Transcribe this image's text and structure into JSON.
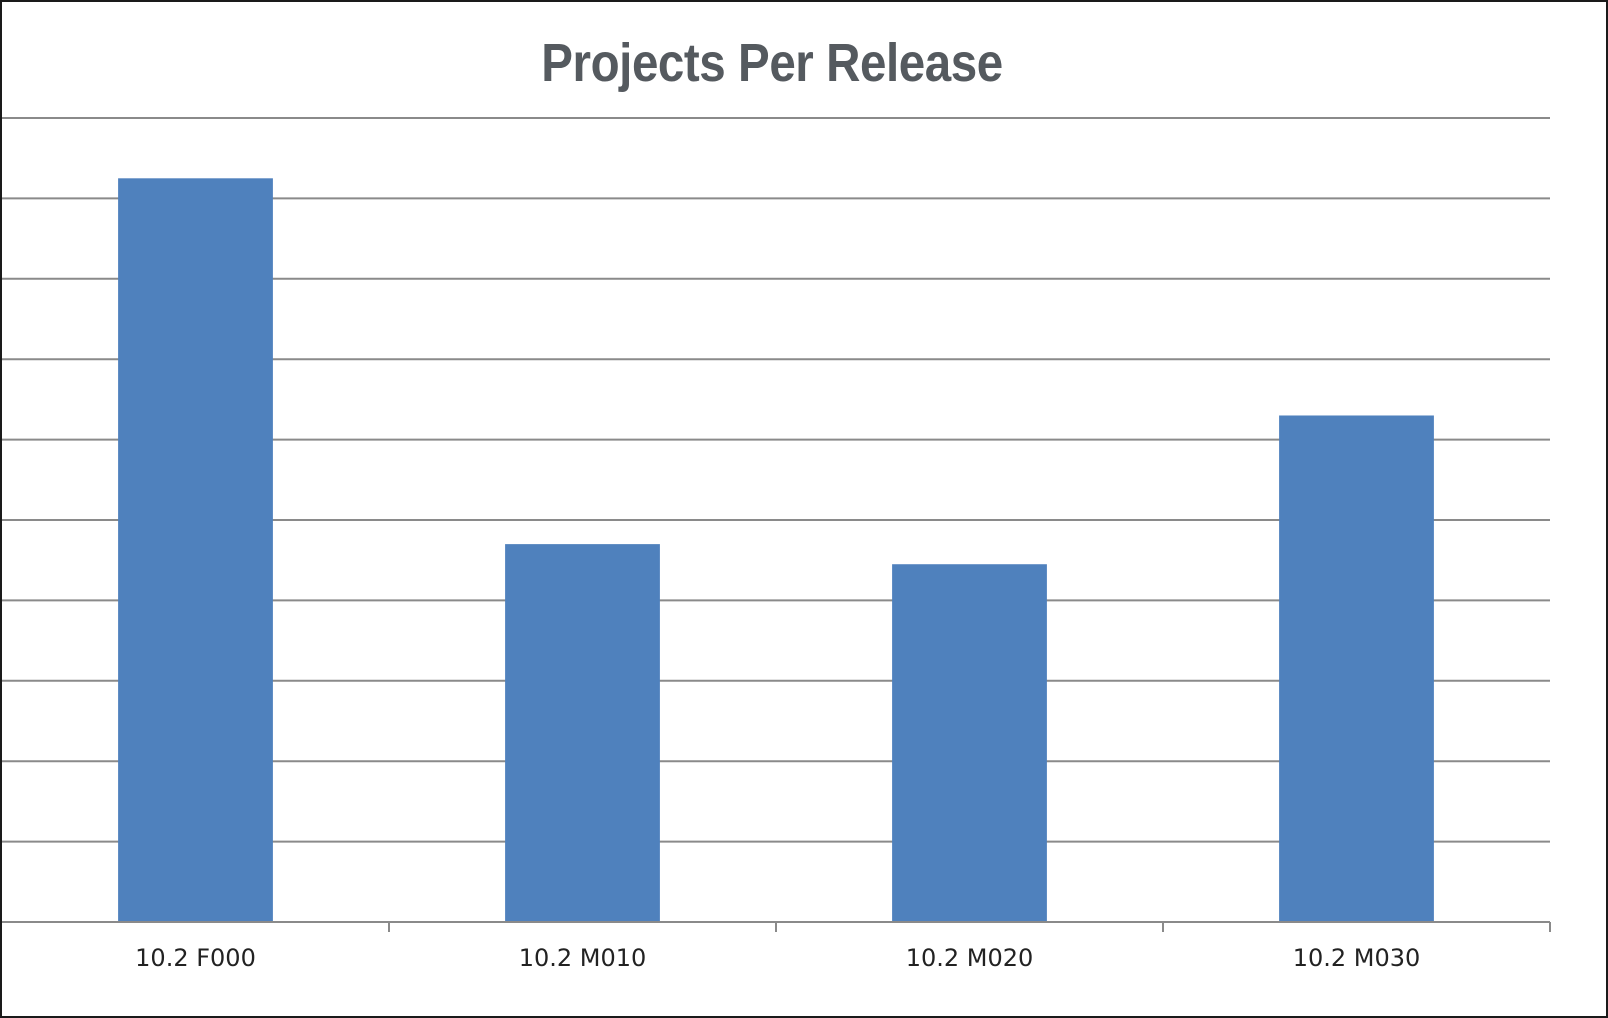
{
  "chart_data": {
    "type": "bar",
    "title": "Projects Per Release",
    "xlabel": "",
    "ylabel": "",
    "categories": [
      "10.2 F000",
      "10.2 M010",
      "10.2 M020",
      "10.2 M030"
    ],
    "values": [
      9.25,
      4.7,
      4.45,
      6.3
    ],
    "ylim": [
      0,
      10
    ],
    "grid": true,
    "gridline_step": 1,
    "legend": "none",
    "colors": {
      "bar": "#4f81bd",
      "grid": "#8a8a8a",
      "title": "#555a5f"
    }
  }
}
